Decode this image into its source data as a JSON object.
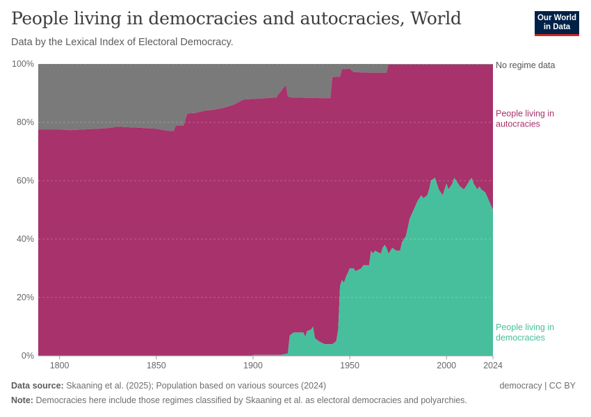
{
  "header": {
    "title": "People living in democracies and autocracies, World",
    "subtitle": "Data by the Lexical Index of Electoral Democracy.",
    "logo_line1": "Our World",
    "logo_line2": "in Data"
  },
  "footer": {
    "source_label": "Data source:",
    "source_text": "Skaaning et al. (2025); Population based on various sources (2024)",
    "note_label": "Note:",
    "note_text": "Democracies here include those regimes classified by Skaaning et al. as electoral democracies and polyarchies.",
    "right_text": "democracy | CC BY"
  },
  "colors": {
    "democracy": "#47bf9c",
    "autocracy": "#a8326b",
    "no_data": "#7a7a7a",
    "grid": "#dddddd"
  },
  "chart_data": {
    "type": "area",
    "stacked": true,
    "percent": true,
    "xlim": [
      1789,
      2024
    ],
    "ylim": [
      0,
      100
    ],
    "x_ticks": [
      "1800",
      "1850",
      "1900",
      "1950",
      "2000",
      "2024"
    ],
    "x_tick_values": [
      1800,
      1850,
      1900,
      1950,
      2000,
      2024
    ],
    "y_ticks": [
      "0%",
      "20%",
      "40%",
      "60%",
      "80%",
      "100%"
    ],
    "y_tick_values": [
      0,
      20,
      40,
      60,
      80,
      100
    ],
    "grid": true,
    "series": [
      {
        "name": "People living in democracies",
        "label_lines": [
          "People living in",
          "democracies"
        ],
        "color": "#47bf9c",
        "points": [
          [
            1789,
            0
          ],
          [
            1899,
            0
          ],
          [
            1900,
            0.3
          ],
          [
            1914,
            0.3
          ],
          [
            1918,
            0.8
          ],
          [
            1919,
            7
          ],
          [
            1921,
            8
          ],
          [
            1926,
            8
          ],
          [
            1927,
            6.5
          ],
          [
            1928,
            8.5
          ],
          [
            1930,
            9
          ],
          [
            1931,
            10
          ],
          [
            1932,
            6
          ],
          [
            1934,
            5
          ],
          [
            1937,
            4
          ],
          [
            1941,
            4
          ],
          [
            1943,
            5
          ],
          [
            1944,
            9
          ],
          [
            1945,
            24
          ],
          [
            1946,
            26
          ],
          [
            1947,
            25
          ],
          [
            1948,
            27
          ],
          [
            1950,
            30
          ],
          [
            1952,
            30
          ],
          [
            1953,
            29
          ],
          [
            1956,
            30
          ],
          [
            1957,
            31
          ],
          [
            1960,
            31
          ],
          [
            1961,
            36
          ],
          [
            1962,
            35
          ],
          [
            1963,
            36
          ],
          [
            1966,
            35
          ],
          [
            1967,
            37
          ],
          [
            1968,
            38
          ],
          [
            1969,
            37
          ],
          [
            1970,
            35
          ],
          [
            1972,
            37
          ],
          [
            1974,
            36
          ],
          [
            1976,
            36
          ],
          [
            1977,
            39
          ],
          [
            1979,
            41
          ],
          [
            1981,
            47
          ],
          [
            1983,
            50
          ],
          [
            1985,
            53
          ],
          [
            1987,
            55
          ],
          [
            1988,
            54
          ],
          [
            1990,
            55
          ],
          [
            1991,
            57
          ],
          [
            1992,
            60
          ],
          [
            1994,
            61
          ],
          [
            1995,
            59
          ],
          [
            1996,
            57
          ],
          [
            1998,
            55
          ],
          [
            2000,
            59
          ],
          [
            2001,
            57
          ],
          [
            2003,
            59
          ],
          [
            2004,
            61
          ],
          [
            2005,
            60
          ],
          [
            2007,
            58
          ],
          [
            2009,
            57
          ],
          [
            2011,
            59
          ],
          [
            2012,
            60
          ],
          [
            2013,
            61
          ],
          [
            2014,
            59
          ],
          [
            2016,
            57
          ],
          [
            2017,
            58
          ],
          [
            2018,
            57
          ],
          [
            2020,
            56
          ],
          [
            2022,
            53
          ],
          [
            2024,
            50
          ]
        ]
      },
      {
        "name": "People living in autocracies",
        "label_lines": [
          "People living in",
          "autocracies"
        ],
        "color": "#a8326b",
        "points": [
          [
            1789,
            77.6
          ],
          [
            1800,
            77.6
          ],
          [
            1805,
            77.3
          ],
          [
            1820,
            77.8
          ],
          [
            1825,
            78
          ],
          [
            1830,
            78.5
          ],
          [
            1840,
            78.2
          ],
          [
            1850,
            77.8
          ],
          [
            1855,
            77.2
          ],
          [
            1859,
            77
          ],
          [
            1860,
            78.8
          ],
          [
            1864,
            78.8
          ],
          [
            1866,
            83
          ],
          [
            1870,
            83.2
          ],
          [
            1875,
            84
          ],
          [
            1880,
            84.3
          ],
          [
            1885,
            85
          ],
          [
            1890,
            86
          ],
          [
            1895,
            87.8
          ],
          [
            1900,
            88
          ],
          [
            1905,
            88.2
          ],
          [
            1912,
            88.5
          ],
          [
            1913,
            89.5
          ],
          [
            1917,
            92.8
          ],
          [
            1918,
            88.8
          ],
          [
            1920,
            88.5
          ],
          [
            1935,
            88.3
          ],
          [
            1940,
            88.3
          ],
          [
            1941,
            95.5
          ],
          [
            1945,
            95.7
          ],
          [
            1946,
            98.2
          ],
          [
            1950,
            98.4
          ],
          [
            1952,
            97.2
          ],
          [
            1960,
            97
          ],
          [
            1969,
            97
          ],
          [
            1970,
            99.8
          ],
          [
            2024,
            99.8
          ]
        ]
      },
      {
        "name": "No regime data",
        "label_lines": [
          "No regime data"
        ],
        "color": "#7a7a7a",
        "points": [
          [
            1789,
            100
          ],
          [
            2024,
            100
          ]
        ]
      }
    ]
  }
}
